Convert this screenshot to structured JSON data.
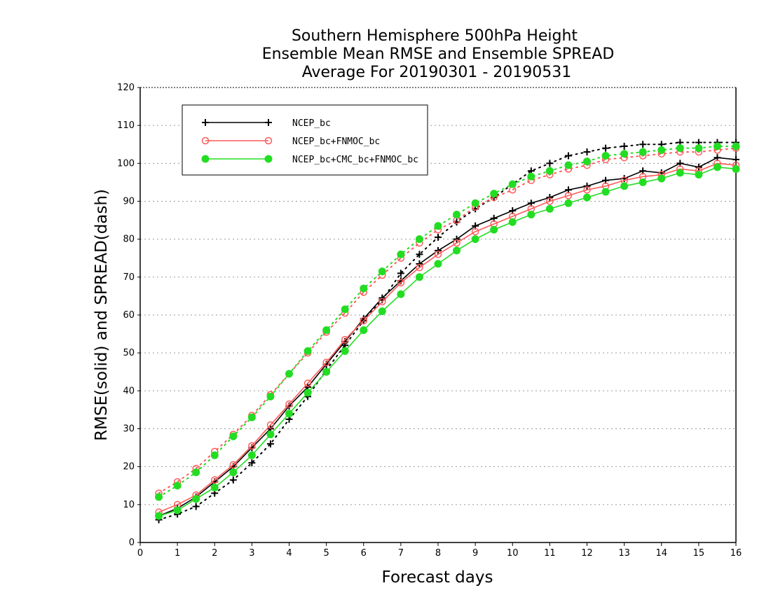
{
  "chart_data": {
    "type": "line",
    "title_lines": [
      "Southern Hemisphere 500hPa Height",
      "Ensemble Mean RMSE and Ensemble SPREAD",
      "Average For 20190301 - 20190531"
    ],
    "xlabel": "Forecast days",
    "ylabel": "RMSE(solid) and SPREAD(dash)",
    "xlim": [
      0,
      16
    ],
    "ylim": [
      0,
      120
    ],
    "xticks": [
      "0",
      "1",
      "2",
      "3",
      "4",
      "5",
      "6",
      "7",
      "8",
      "9",
      "10",
      "11",
      "12",
      "13",
      "14",
      "15",
      "16"
    ],
    "yticks": [
      "0",
      "10",
      "20",
      "30",
      "40",
      "50",
      "60",
      "70",
      "80",
      "90",
      "100",
      "110",
      "120"
    ],
    "grid": true,
    "legend_position": "top-left",
    "x": [
      0.5,
      1,
      1.5,
      2,
      2.5,
      3,
      3.5,
      4,
      4.5,
      5,
      5.5,
      6,
      6.5,
      7,
      7.5,
      8,
      8.5,
      9,
      9.5,
      10,
      10.5,
      11,
      11.5,
      12,
      12.5,
      13,
      13.5,
      14,
      14.5,
      15,
      15.5,
      16
    ],
    "series": [
      {
        "name": "NCEP_bc",
        "color": "#000000",
        "marker": "plus",
        "rmse": [
          7.0,
          9.0,
          12.0,
          16.0,
          20.0,
          25.0,
          30.0,
          36.0,
          41.0,
          47.0,
          53.0,
          59.0,
          64.5,
          69.0,
          73.5,
          77.0,
          80.0,
          83.5,
          85.5,
          87.5,
          89.5,
          91.0,
          93.0,
          94.0,
          95.5,
          96.0,
          98.0,
          97.5,
          100.0,
          99.0,
          101.5,
          101.0
        ],
        "spread": [
          6.0,
          7.5,
          9.5,
          13.0,
          16.5,
          21.0,
          26.0,
          32.5,
          38.5,
          45.5,
          52.0,
          58.5,
          64.0,
          71.0,
          76.0,
          80.5,
          84.5,
          88.0,
          91.0,
          94.5,
          98.0,
          100.0,
          102.0,
          103.0,
          104.0,
          104.5,
          105.0,
          105.0,
          105.5,
          105.5,
          105.5,
          105.5
        ]
      },
      {
        "name": "NCEP_bc+FNMOC_bc",
        "color": "#ff5a5a",
        "marker": "open-circle",
        "rmse": [
          8.0,
          10.0,
          12.5,
          16.5,
          20.5,
          25.5,
          31.0,
          36.5,
          42.0,
          47.5,
          53.5,
          58.5,
          63.5,
          68.5,
          72.5,
          76.0,
          79.0,
          82.0,
          84.0,
          86.0,
          88.0,
          90.0,
          91.5,
          93.0,
          94.0,
          95.5,
          96.5,
          97.0,
          98.5,
          98.0,
          100.0,
          99.5
        ],
        "spread": [
          13.0,
          16.0,
          19.5,
          24.0,
          28.5,
          33.5,
          39.0,
          44.5,
          50.0,
          55.5,
          60.5,
          66.0,
          70.5,
          75.0,
          79.0,
          82.5,
          85.0,
          88.5,
          91.0,
          93.0,
          95.5,
          97.0,
          98.5,
          99.5,
          101.0,
          101.5,
          102.0,
          102.5,
          103.0,
          103.0,
          103.5,
          104.0
        ]
      },
      {
        "name": "NCEP_bc+CMC_bc+FNMOC_bc",
        "color": "#22dd22",
        "marker": "filled-circle",
        "rmse": [
          7.0,
          8.5,
          11.5,
          14.5,
          18.5,
          23.0,
          28.5,
          34.0,
          39.5,
          45.0,
          50.5,
          56.0,
          61.0,
          65.5,
          70.0,
          73.5,
          77.0,
          80.0,
          82.5,
          84.5,
          86.5,
          88.0,
          89.5,
          91.0,
          92.5,
          94.0,
          95.0,
          96.0,
          97.5,
          97.0,
          99.0,
          98.5
        ],
        "spread": [
          12.0,
          15.0,
          18.5,
          23.0,
          28.0,
          33.0,
          38.5,
          44.5,
          50.5,
          56.0,
          61.5,
          67.0,
          71.5,
          76.0,
          80.0,
          83.5,
          86.5,
          89.5,
          92.0,
          94.5,
          96.5,
          98.0,
          99.5,
          100.5,
          102.0,
          102.5,
          103.0,
          103.5,
          104.0,
          104.0,
          104.5,
          104.5
        ]
      }
    ]
  }
}
